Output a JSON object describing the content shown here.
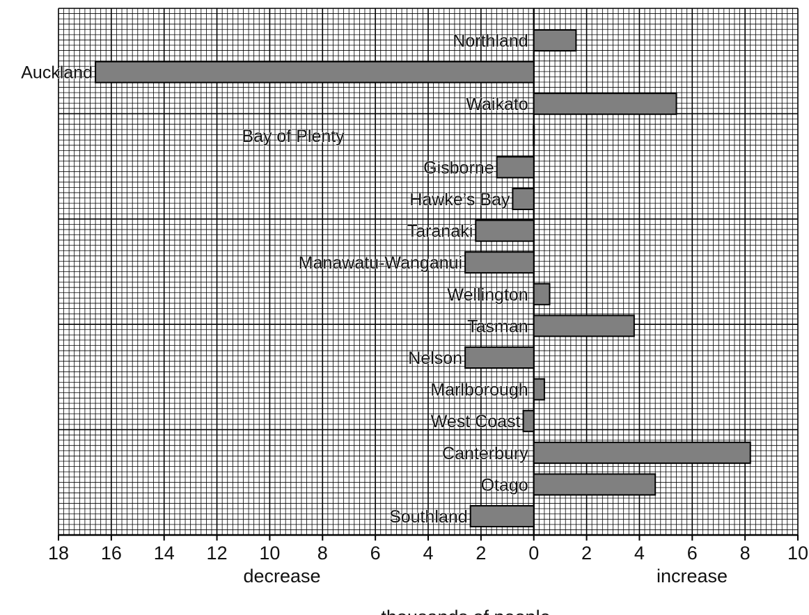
{
  "chart_data": {
    "type": "bar",
    "orientation": "horizontal",
    "categories": [
      "Northland",
      "Auckland",
      "Waikato",
      "Bay of Plenty",
      "Gisborne",
      "Hawke’s Bay",
      "Taranaki",
      "Manawatu-Wanganui",
      "Wellington",
      "Tasman",
      "Nelson",
      "Marlborough",
      "West Coast",
      "Canterbury",
      "Otago",
      "Southland"
    ],
    "values": [
      1.6,
      -16.6,
      5.4,
      0,
      -1.4,
      -0.8,
      -2.2,
      -2.6,
      0.6,
      3.8,
      -2.6,
      0.4,
      -0.4,
      8.2,
      4.6,
      -2.4
    ],
    "xlim": [
      -18,
      10
    ],
    "x_ticks": [
      -18,
      -16,
      -14,
      -12,
      -10,
      -8,
      -6,
      -4,
      -2,
      0,
      2,
      4,
      6,
      8,
      10
    ],
    "x_tick_labels": [
      "18",
      "16",
      "14",
      "12",
      "10",
      "8",
      "6",
      "4",
      "2",
      "0",
      "2",
      "4",
      "6",
      "8",
      "10"
    ],
    "negative_label": "decrease",
    "positive_label": "increase",
    "xlabel": "thousands of people",
    "grid": true,
    "bar_color": "#808080",
    "bar_edge_color": "#000000"
  }
}
